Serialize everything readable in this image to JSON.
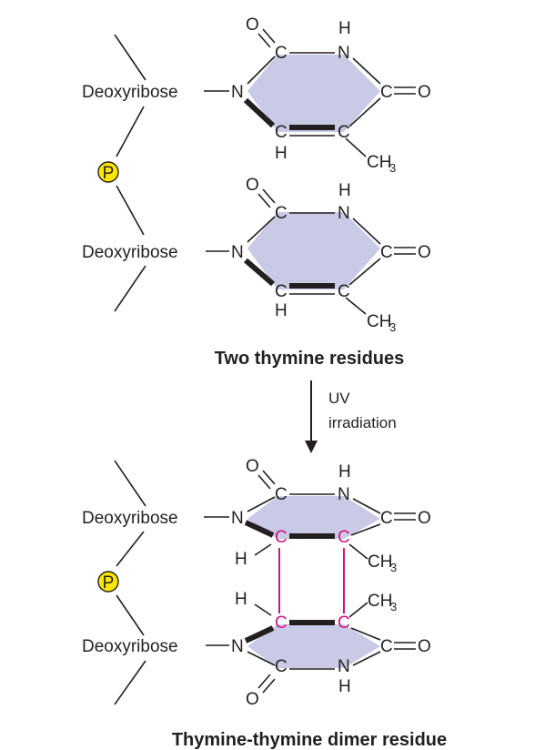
{
  "labels": {
    "deoxyribose": "Deoxyribose",
    "phosphate": "P",
    "caption_top": "Two thymine residues",
    "caption_bottom": "Thymine-thymine dimer residue",
    "uv_line1": "UV",
    "uv_line2": "irradiation"
  },
  "atoms": {
    "O": "O",
    "C": "C",
    "N": "N",
    "H": "H",
    "CH": "CH",
    "sub3": "3"
  },
  "colors": {
    "ring_fill": "#c9cae6",
    "phosphate_fill": "#fde700",
    "cyclobutane_bonds": "#d4127f",
    "text": "#231f20"
  }
}
